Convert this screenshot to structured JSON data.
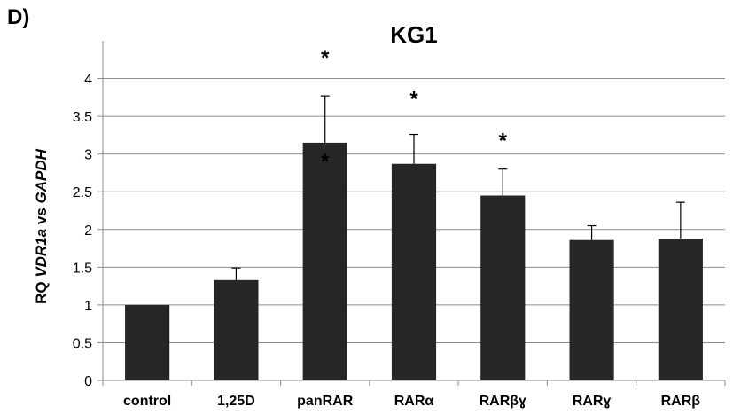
{
  "panel_label": "D)",
  "chart_data": {
    "type": "bar",
    "title": "KG1",
    "ylabel_parts": [
      {
        "text": "RQ ",
        "italic": false
      },
      {
        "text": "VDR1a",
        "italic": true
      },
      {
        "text": " vs ",
        "italic": false
      },
      {
        "text": "GAPDH",
        "italic": true
      }
    ],
    "categories": [
      "control",
      "1,25D",
      "panRAR",
      "RARα",
      "RARβɣ",
      "RARɣ",
      "RARβ"
    ],
    "values": [
      1.0,
      1.33,
      3.15,
      2.87,
      2.45,
      1.86,
      1.88
    ],
    "errors": [
      0.0,
      0.16,
      0.62,
      0.39,
      0.35,
      0.19,
      0.48
    ],
    "yticks": [
      "0",
      "0.5",
      "1",
      "1.5",
      "2",
      "2.5",
      "3",
      "3.5",
      "4"
    ],
    "ylim": [
      0,
      4.5
    ],
    "grid": true,
    "bar_color": "#262626",
    "significance": [
      {
        "category": "panRAR",
        "y": 4.35,
        "mark": "*"
      },
      {
        "category": "panRAR",
        "y": 2.97,
        "mark": "*"
      },
      {
        "category": "RARα",
        "y": 3.8,
        "mark": "*"
      },
      {
        "category": "RARβɣ",
        "y": 3.25,
        "mark": "*"
      }
    ]
  }
}
